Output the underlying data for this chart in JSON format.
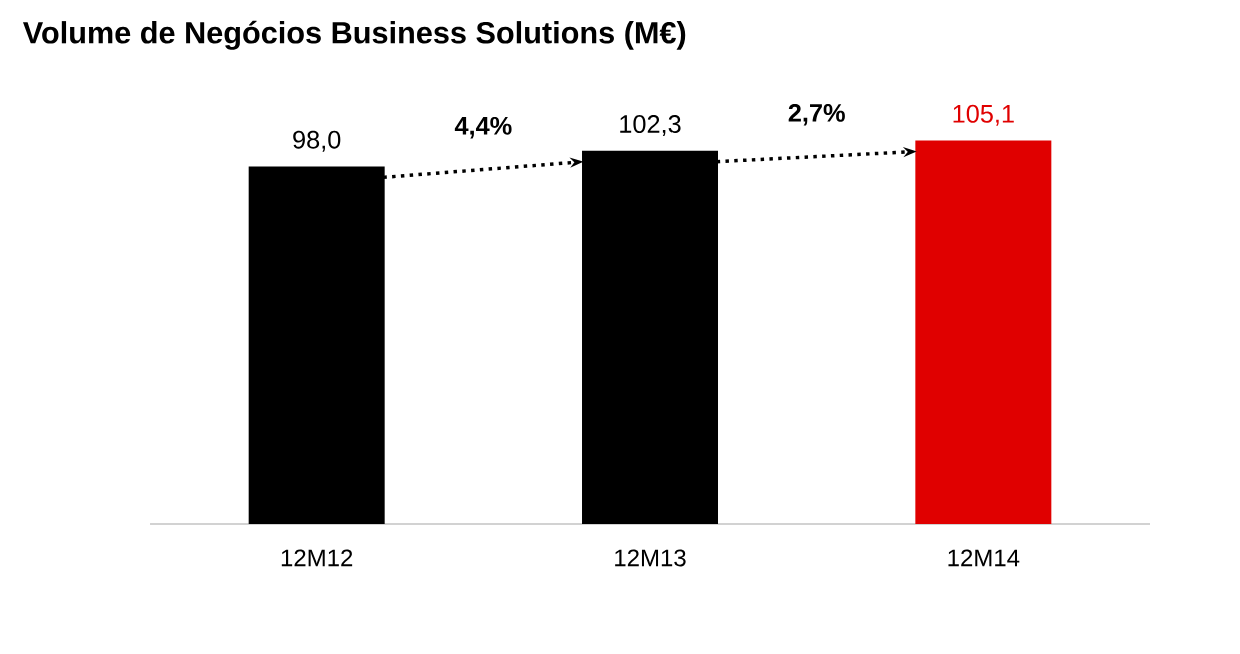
{
  "chart_data": {
    "type": "bar",
    "title": "Volume de Negócios Business Solutions (M€)",
    "categories": [
      "12M12",
      "12M13",
      "12M14"
    ],
    "values": [
      98.0,
      102.3,
      105.1
    ],
    "value_labels": [
      "98,0",
      "102,3",
      "105,1"
    ],
    "colors": [
      "#000000",
      "#000000",
      "#e00000"
    ],
    "tick_labels": "x",
    "annotations": [
      "4,4%",
      "2,7%"
    ]
  }
}
